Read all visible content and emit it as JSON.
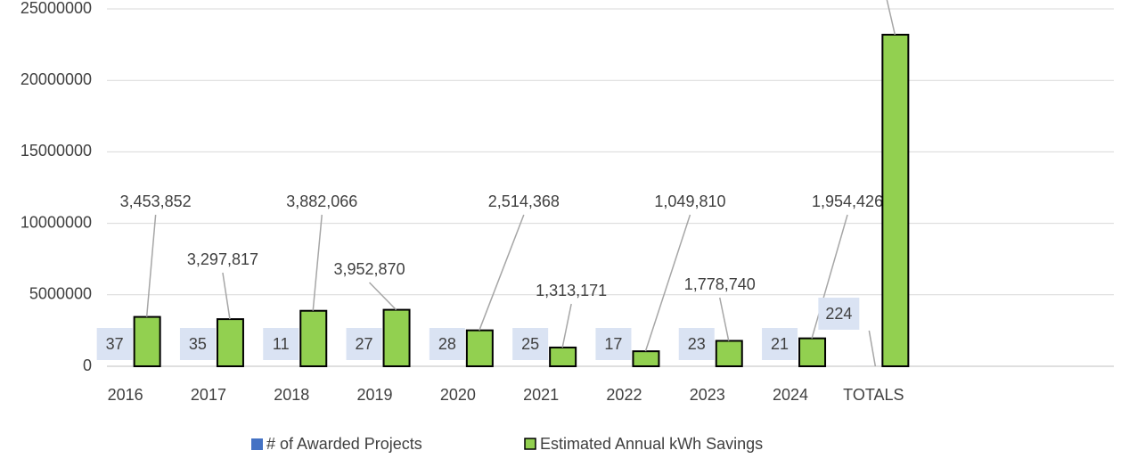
{
  "chart_data": {
    "type": "bar",
    "categories": [
      "2016",
      "2017",
      "2018",
      "2019",
      "2020",
      "2021",
      "2022",
      "2023",
      "2024",
      "TOTALS"
    ],
    "series": [
      {
        "name": "# of Awarded Projects",
        "color": "#4472c4",
        "values": [
          37,
          35,
          11,
          27,
          28,
          25,
          17,
          23,
          21,
          224
        ]
      },
      {
        "name": "Estimated Annual kWh Savings",
        "color": "#92d050",
        "values": [
          3453852,
          3297817,
          3882066,
          3952870,
          2514368,
          1313171,
          1049810,
          1778740,
          1954426,
          23197120
        ],
        "value_labels": [
          "3,453,852",
          "3,297,817",
          "3,882,066",
          "3,952,870",
          "2,514,368",
          "1,313,171",
          "1,049,810",
          "1,778,740",
          "1,954,426",
          null
        ]
      }
    ],
    "ylim": [
      0,
      25000000
    ],
    "yticks": [
      0,
      5000000,
      10000000,
      15000000,
      20000000,
      25000000
    ],
    "grid": true,
    "legend": "bottom"
  }
}
